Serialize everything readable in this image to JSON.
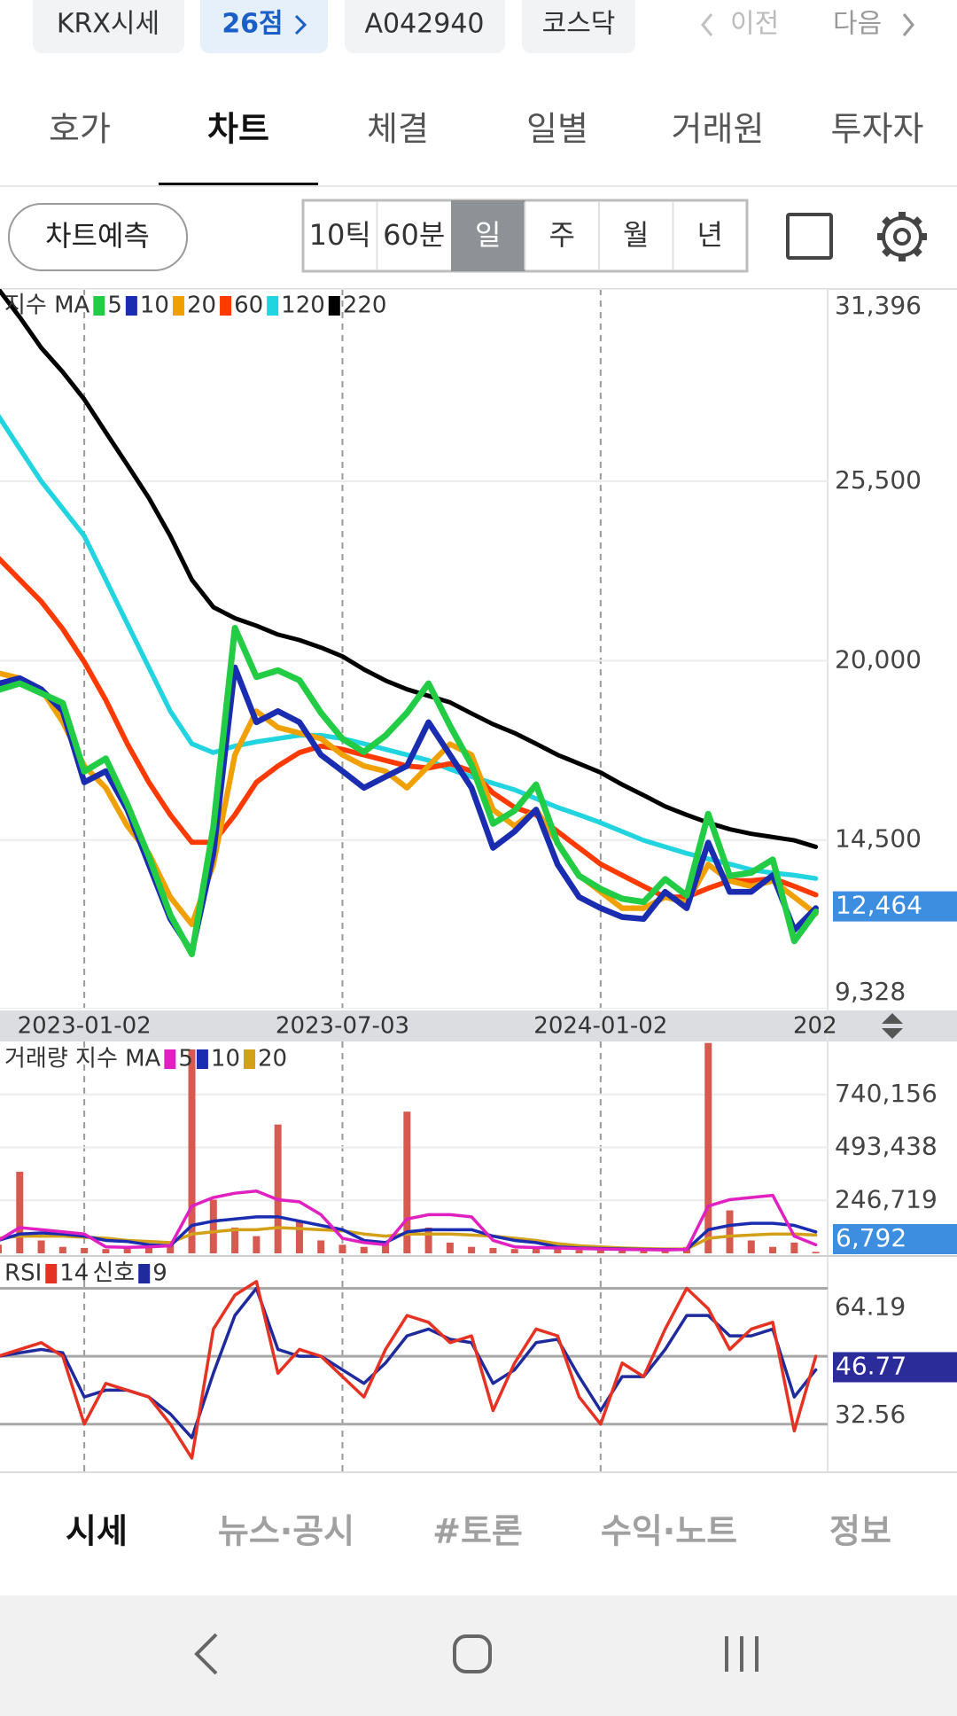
{
  "header": {
    "chips": [
      "KRX시세",
      "26점",
      "A042940",
      "코스닥"
    ],
    "prev": "이전",
    "next": "다음"
  },
  "tabs": {
    "items": [
      "호가",
      "차트",
      "체결",
      "일별",
      "거래원",
      "투자자"
    ],
    "selected": 1
  },
  "controls": {
    "forecast": "차트예측",
    "periods": [
      "10틱",
      "60분",
      "일",
      "주",
      "월",
      "년"
    ],
    "selected": 2
  },
  "chart_data": [
    {
      "type": "line",
      "title": "지수 MA",
      "categories": [
        null,
        null,
        null,
        null,
        "2023-01-02",
        null,
        null,
        null,
        null,
        null,
        null,
        null,
        null,
        null,
        null,
        null,
        "2023-07-03",
        null,
        null,
        null,
        null,
        null,
        null,
        null,
        null,
        null,
        null,
        null,
        "2024-01-02",
        null,
        null,
        null,
        null,
        null,
        null,
        null,
        null,
        null,
        "202"
      ],
      "series": [
        {
          "name": "5",
          "color": "#22cc44",
          "values": [
            19100,
            19300,
            19000,
            18700,
            16600,
            17000,
            15600,
            14000,
            12200,
            11000,
            14900,
            21000,
            19500,
            19700,
            19400,
            18400,
            17600,
            17200,
            17700,
            18400,
            19300,
            18000,
            16800,
            15000,
            15400,
            16200,
            14400,
            13400,
            13000,
            12700,
            12600,
            13300,
            12800,
            15300,
            13400,
            13500,
            13900,
            11400,
            12300
          ]
        },
        {
          "name": "10",
          "color": "#1a2db0",
          "values": [
            19290,
            19460,
            19120,
            18450,
            16270,
            16610,
            15430,
            13750,
            12080,
            11070,
            14090,
            19790,
            18110,
            18450,
            18110,
            17110,
            16610,
            16100,
            16440,
            16770,
            18110,
            17110,
            16100,
            14260,
            14760,
            15430,
            13750,
            12750,
            12410,
            12140,
            12080,
            12910,
            12410,
            14420,
            12910,
            12910,
            13420,
            11740,
            12410
          ]
        },
        {
          "name": "20",
          "color": "#f0a000",
          "values": [
            19620,
            19460,
            19120,
            18120,
            16770,
            16100,
            14930,
            14090,
            12750,
            11910,
            13750,
            17110,
            18450,
            17950,
            17780,
            17610,
            17110,
            16770,
            16610,
            16100,
            16770,
            17440,
            17110,
            15430,
            14930,
            15430,
            14420,
            13420,
            12910,
            12410,
            12410,
            12750,
            12580,
            13750,
            13250,
            13080,
            13250,
            12750,
            12240
          ]
        },
        {
          "name": "60",
          "color": "#ff3a00",
          "values": [
            23150,
            22480,
            21810,
            20970,
            19960,
            18790,
            17450,
            16270,
            15270,
            14430,
            14430,
            15270,
            16270,
            16770,
            17180,
            17380,
            17280,
            17110,
            16940,
            16770,
            16710,
            16840,
            16610,
            15940,
            15500,
            15270,
            14760,
            14260,
            13760,
            13420,
            13080,
            12750,
            12750,
            13020,
            13250,
            13250,
            13320,
            13080,
            12820
          ]
        },
        {
          "name": "120",
          "color": "#22d3e0",
          "values": [
            27510,
            26500,
            25500,
            24660,
            23820,
            22480,
            21130,
            19790,
            18450,
            17450,
            17180,
            17380,
            17510,
            17610,
            17710,
            17710,
            17610,
            17450,
            17280,
            17110,
            16940,
            16670,
            16440,
            16240,
            16040,
            15770,
            15500,
            15270,
            15030,
            14760,
            14490,
            14290,
            14090,
            13920,
            13760,
            13590,
            13490,
            13420,
            13320
          ]
        },
        {
          "name": "220",
          "color": "#000000",
          "values": [
            31400,
            30530,
            29590,
            28850,
            28010,
            27000,
            26000,
            24990,
            23820,
            22480,
            21640,
            21300,
            21070,
            20800,
            20630,
            20400,
            20130,
            19730,
            19390,
            19120,
            18920,
            18720,
            18380,
            18050,
            17780,
            17450,
            17110,
            16840,
            16570,
            16200,
            15870,
            15530,
            15270,
            15030,
            14830,
            14690,
            14590,
            14490,
            14290
          ]
        }
      ],
      "ylim": [
        9328,
        31396
      ],
      "yticks": [
        {
          "value": 9328,
          "label": "9,328"
        },
        {
          "value": 14500,
          "label": "14,500"
        },
        {
          "value": 20000,
          "label": "20,000"
        },
        {
          "value": 25500,
          "label": "25,500"
        },
        {
          "value": 31396,
          "label": "31,396"
        }
      ],
      "last": {
        "value": 12464,
        "label": "12,464"
      },
      "last_color": "#3d8ee0",
      "grid": true
    },
    {
      "type": "bar",
      "title": "거래량 지수 MA",
      "color": "#d65a50",
      "values": [
        40000,
        380000,
        60000,
        30000,
        25000,
        20000,
        30000,
        25000,
        40000,
        950000,
        250000,
        120000,
        80000,
        600000,
        150000,
        60000,
        40000,
        30000,
        50000,
        660000,
        120000,
        50000,
        30000,
        25000,
        20000,
        30000,
        20000,
        15000,
        20000,
        15000,
        12000,
        15000,
        30000,
        980000,
        200000,
        60000,
        30000,
        50000,
        6792
      ],
      "series": [
        {
          "name": "5",
          "color": "#e020c0",
          "values": [
            60000,
            120000,
            110000,
            100000,
            90000,
            30000,
            28000,
            30000,
            35000,
            220000,
            260000,
            280000,
            290000,
            250000,
            240000,
            180000,
            70000,
            50000,
            40000,
            160000,
            180000,
            180000,
            170000,
            60000,
            30000,
            27000,
            25000,
            22000,
            20000,
            18000,
            17000,
            16000,
            18000,
            220000,
            250000,
            260000,
            270000,
            80000,
            40000
          ]
        },
        {
          "name": "10",
          "color": "#1a2db0",
          "values": [
            60000,
            90000,
            95000,
            90000,
            80000,
            60000,
            55000,
            40000,
            35000,
            130000,
            150000,
            160000,
            170000,
            170000,
            150000,
            130000,
            110000,
            60000,
            50000,
            100000,
            110000,
            110000,
            110000,
            80000,
            60000,
            50000,
            30000,
            25000,
            22000,
            20000,
            18000,
            17000,
            18000,
            110000,
            130000,
            140000,
            140000,
            130000,
            100000
          ]
        },
        {
          "name": "20",
          "color": "#d4a017",
          "values": [
            70000,
            80000,
            80000,
            80000,
            75000,
            70000,
            60000,
            55000,
            50000,
            90000,
            100000,
            110000,
            110000,
            120000,
            115000,
            110000,
            105000,
            90000,
            80000,
            90000,
            90000,
            90000,
            85000,
            80000,
            70000,
            60000,
            45000,
            35000,
            30000,
            25000,
            22000,
            20000,
            20000,
            70000,
            80000,
            85000,
            90000,
            90000,
            85000
          ]
        }
      ],
      "ylim": [
        0,
        986875
      ],
      "yticks": [
        {
          "value": 246719,
          "label": "246,719"
        },
        {
          "value": 493438,
          "label": "493,438"
        },
        {
          "value": 740156,
          "label": "740,156"
        }
      ],
      "last": {
        "value": 6792,
        "label": "6,792"
      },
      "last_color": "#3d8ee0",
      "grid": true
    },
    {
      "type": "line",
      "title": "RSI",
      "signal_label": "신호",
      "series": [
        {
          "name": "14",
          "color": "#e53222",
          "values": [
            50,
            52,
            54,
            50,
            30,
            42,
            40,
            38,
            30,
            20,
            58,
            68,
            72,
            45,
            52,
            50,
            44,
            38,
            52,
            62,
            60,
            54,
            56,
            34,
            48,
            58,
            56,
            38,
            30,
            48,
            44,
            58,
            70,
            64,
            52,
            58,
            60,
            28,
            50
          ]
        },
        {
          "name": "9",
          "color": "#1f2a9c",
          "values": [
            50,
            51,
            52,
            51,
            38,
            40,
            40,
            38,
            33,
            26,
            45,
            62,
            70,
            52,
            50,
            50,
            46,
            42,
            48,
            56,
            58,
            55,
            54,
            42,
            46,
            54,
            55,
            44,
            34,
            44,
            44,
            52,
            62,
            62,
            56,
            56,
            58,
            38,
            46
          ]
        }
      ],
      "ylim": [
        16.1,
        79
      ],
      "yticks": [
        32.56,
        64.19
      ],
      "levels": [
        30,
        50,
        70
      ],
      "last": 46.77,
      "last_color": "#2b2b9a",
      "grid": false
    }
  ],
  "bottom_nav": {
    "items": [
      "시세",
      "뉴스·공시",
      "#토론",
      "수익·노트",
      "정보"
    ],
    "selected": 0
  }
}
